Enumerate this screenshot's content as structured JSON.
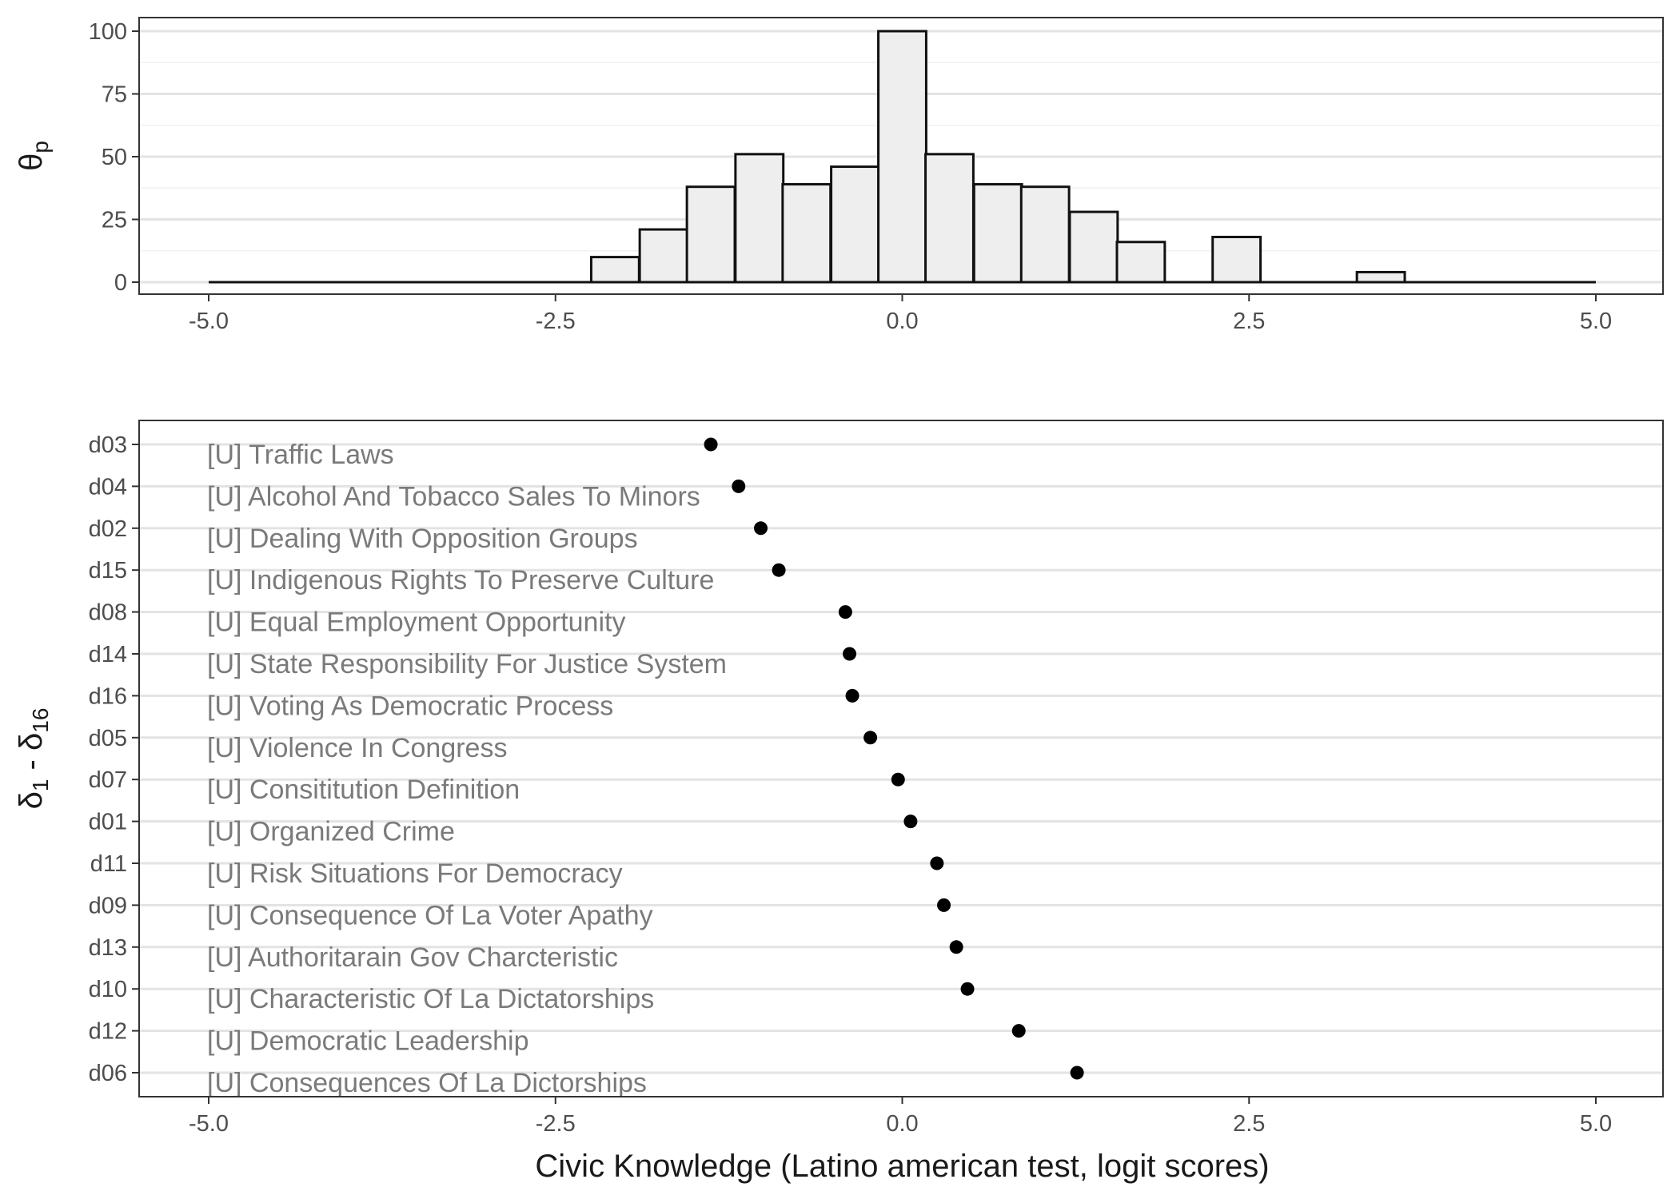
{
  "chart_data": [
    {
      "type": "bar",
      "subtype": "histogram",
      "ylabel": "θp",
      "ylabel_main": "θ",
      "ylabel_sub": "p",
      "xlim": [
        -5.0,
        5.0
      ],
      "ylim": [
        0,
        100
      ],
      "x_ticks": [
        "-5.0",
        "-2.5",
        "0.0",
        "2.5",
        "5.0"
      ],
      "y_ticks": [
        "0",
        "25",
        "50",
        "75",
        "100"
      ],
      "grid": true,
      "bin_width": 0.345,
      "bins": [
        {
          "x": -2.07,
          "value": 10
        },
        {
          "x": -1.72,
          "value": 21
        },
        {
          "x": -1.38,
          "value": 38
        },
        {
          "x": -1.03,
          "value": 51
        },
        {
          "x": -0.69,
          "value": 39
        },
        {
          "x": -0.34,
          "value": 46
        },
        {
          "x": 0.0,
          "value": 100
        },
        {
          "x": 0.34,
          "value": 51
        },
        {
          "x": 0.69,
          "value": 39
        },
        {
          "x": 1.03,
          "value": 38
        },
        {
          "x": 1.38,
          "value": 28
        },
        {
          "x": 1.72,
          "value": 16
        },
        {
          "x": 2.41,
          "value": 18
        },
        {
          "x": 3.45,
          "value": 4
        }
      ]
    },
    {
      "type": "scatter",
      "ylabel": "δ1 - δ16",
      "ylabel_main_a": "δ",
      "ylabel_sub_a": "1",
      "ylabel_mid": " - δ",
      "ylabel_sub_b": "16",
      "xlabel": "Civic Knowledge (Latino american test, logit scores)",
      "xlim": [
        -5.0,
        5.0
      ],
      "x_ticks": [
        "-5.0",
        "-2.5",
        "0.0",
        "2.5",
        "5.0"
      ],
      "grid": true,
      "items": [
        {
          "code": "d03",
          "label": "[U] Traffic Laws",
          "x": -1.38
        },
        {
          "code": "d04",
          "label": "[U] Alcohol And Tobacco Sales To Minors",
          "x": -1.18
        },
        {
          "code": "d02",
          "label": "[U] Dealing With Opposition Groups",
          "x": -1.02
        },
        {
          "code": "d15",
          "label": "[U] Indigenous Rights To Preserve Culture",
          "x": -0.89
        },
        {
          "code": "d08",
          "label": "[U] Equal Employment Opportunity",
          "x": -0.41
        },
        {
          "code": "d14",
          "label": "[U] State Responsibility For Justice System",
          "x": -0.38
        },
        {
          "code": "d16",
          "label": "[U] Voting As Democratic Process",
          "x": -0.36
        },
        {
          "code": "d05",
          "label": "[U] Violence In Congress",
          "x": -0.23
        },
        {
          "code": "d07",
          "label": "[U] Consititution Definition",
          "x": -0.03
        },
        {
          "code": "d01",
          "label": "[U] Organized Crime",
          "x": 0.06
        },
        {
          "code": "d11",
          "label": "[U] Risk Situations For Democracy",
          "x": 0.25
        },
        {
          "code": "d09",
          "label": "[U] Consequence Of La Voter Apathy",
          "x": 0.3
        },
        {
          "code": "d13",
          "label": "[U] Authoritarain Gov Charcteristic",
          "x": 0.39
        },
        {
          "code": "d10",
          "label": "[U] Characteristic Of La Dictatorships",
          "x": 0.47
        },
        {
          "code": "d12",
          "label": "[U] Democratic Leadership",
          "x": 0.84
        },
        {
          "code": "d06",
          "label": "[U] Consequences Of La Dictorships",
          "x": 1.26
        }
      ]
    }
  ]
}
